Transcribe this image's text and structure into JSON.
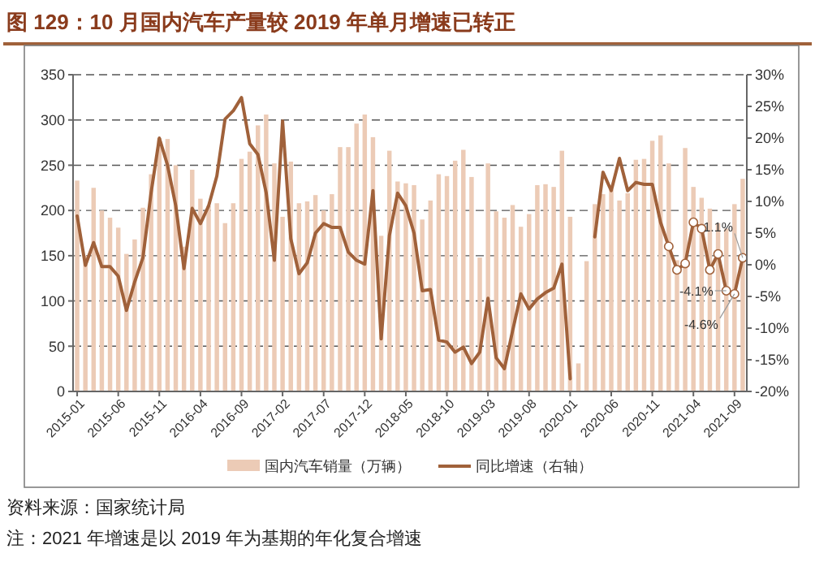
{
  "chart_data": {
    "type": "bar",
    "title": "图 129：10 月国内汽车产量较 2019 年单月增速已转正",
    "x": [
      "2015-01",
      "2015-02",
      "2015-03",
      "2015-04",
      "2015-05",
      "2015-06",
      "2015-07",
      "2015-08",
      "2015-09",
      "2015-10",
      "2015-11",
      "2015-12",
      "2016-01",
      "2016-02",
      "2016-03",
      "2016-04",
      "2016-05",
      "2016-06",
      "2016-07",
      "2016-08",
      "2016-09",
      "2016-10",
      "2016-11",
      "2016-12",
      "2017-01",
      "2017-02",
      "2017-03",
      "2017-04",
      "2017-05",
      "2017-06",
      "2017-07",
      "2017-08",
      "2017-09",
      "2017-10",
      "2017-11",
      "2017-12",
      "2018-01",
      "2018-02",
      "2018-03",
      "2018-04",
      "2018-05",
      "2018-06",
      "2018-07",
      "2018-08",
      "2018-09",
      "2018-10",
      "2018-11",
      "2018-12",
      "2019-01",
      "2019-02",
      "2019-03",
      "2019-04",
      "2019-05",
      "2019-06",
      "2019-07",
      "2019-08",
      "2019-09",
      "2019-10",
      "2019-11",
      "2019-12",
      "2020-01",
      "2020-02",
      "2020-03",
      "2020-04",
      "2020-05",
      "2020-06",
      "2020-07",
      "2020-08",
      "2020-09",
      "2020-10",
      "2020-11",
      "2020-12",
      "2021-01",
      "2021-02",
      "2021-03",
      "2021-04",
      "2021-05",
      "2021-06",
      "2021-07",
      "2021-08",
      "2021-09",
      "2021-10"
    ],
    "series": [
      {
        "name": "国内汽车销量（万辆）",
        "color": "#eccbb6",
        "values": [
          233,
          150,
          225,
          200,
          192,
          181,
          152,
          168,
          203,
          240,
          280,
          279,
          250,
          160,
          245,
          213,
          205,
          208,
          186,
          208,
          257,
          265,
          294,
          306,
          252,
          193,
          254,
          208,
          210,
          217,
          200,
          218,
          270,
          270,
          296,
          306,
          281,
          172,
          266,
          232,
          230,
          228,
          190,
          211,
          240,
          238,
          255,
          267,
          237,
          148,
          252,
          199,
          192,
          206,
          182,
          196,
          228,
          229,
          226,
          266,
          193,
          31,
          144,
          207,
          218,
          223,
          211,
          219,
          256,
          257,
          277,
          283,
          252,
          145,
          269,
          226,
          214,
          202,
          186,
          180,
          207,
          235
        ]
      },
      {
        "name": "同比增速（右轴）",
        "type": "line",
        "axis": "y2",
        "color": "#a0613a",
        "values": [
          7.7,
          -0.1,
          3.5,
          -0.3,
          -0.3,
          -1.8,
          -7.2,
          -2.7,
          1.1,
          11.4,
          20,
          15.7,
          9.3,
          -0.6,
          8.9,
          6.5,
          9.3,
          14,
          23,
          24.3,
          26.4,
          19.1,
          17.4,
          11.4,
          0.7,
          22.7,
          4.1,
          -1.4,
          0.3,
          5.0,
          6.5,
          5.9,
          5.9,
          2.0,
          0.7,
          0.1,
          11.7,
          -11.7,
          4.6,
          11.3,
          9.3,
          5.0,
          -4.1,
          -3.9,
          -11.9,
          -12.2,
          -13.8,
          -13.0,
          -15.6,
          -13.8,
          -5.3,
          -14.7,
          -16.4,
          -10.4,
          -4.6,
          -7.0,
          -5.4,
          -4.4,
          -3.7,
          0.1,
          -18,
          null,
          null,
          4.4,
          14.6,
          11.7,
          16.8,
          11.7,
          13,
          12.7,
          12.7,
          6.7,
          2.9,
          -0.8,
          0.2,
          6.7,
          5.7,
          -0.8,
          1.7,
          -4.1,
          -4.6,
          1.1
        ]
      },
      {
        "type": "scatter",
        "axis": "y2",
        "color": "#a0613a",
        "marker": "circle",
        "x": [
          "2021-01",
          "2021-02",
          "2021-03",
          "2021-04",
          "2021-05",
          "2021-06",
          "2021-07",
          "2021-08",
          "2021-09",
          "2021-10"
        ],
        "values": [
          2.9,
          -0.8,
          0.2,
          6.7,
          5.7,
          -0.8,
          1.7,
          -4.1,
          -4.6,
          1.1
        ]
      }
    ],
    "xlim": [
      "2014-12-16",
      "2021-10-16"
    ],
    "xticks": [
      "2015-01",
      "2015-06",
      "2015-11",
      "2016-04",
      "2016-09",
      "2017-02",
      "2017-07",
      "2017-12",
      "2018-05",
      "2018-10",
      "2019-03",
      "2019-08",
      "2020-01",
      "2020-06",
      "2020-11",
      "2021-04",
      "2021-09"
    ],
    "ylim": [
      0,
      350
    ],
    "yticks": [
      0,
      50,
      100,
      150,
      200,
      250,
      300,
      350
    ],
    "y2lim": [
      -20,
      30
    ],
    "y2ticks": [
      {
        "value": -20,
        "label": "-20%"
      },
      {
        "value": -15,
        "label": "-15%"
      },
      {
        "value": -10,
        "label": "-10%"
      },
      {
        "value": -5,
        "label": "-5%"
      },
      {
        "value": 0,
        "label": "0%"
      },
      {
        "value": 5,
        "label": "5%"
      },
      {
        "value": 10,
        "label": "10%"
      },
      {
        "value": 15,
        "label": "15%"
      },
      {
        "value": 20,
        "label": "20%"
      },
      {
        "value": 25,
        "label": "25%"
      },
      {
        "value": 30,
        "label": "30%"
      }
    ],
    "grid": "y",
    "legend": "bottom",
    "line_style": "solid",
    "annotations": [
      "1.1%",
      "-4.1%",
      "-4.6%",
      "资料来源：国家统计局",
      "注：2021 年增速是以 2019 年为基期的年化复合增速"
    ]
  }
}
